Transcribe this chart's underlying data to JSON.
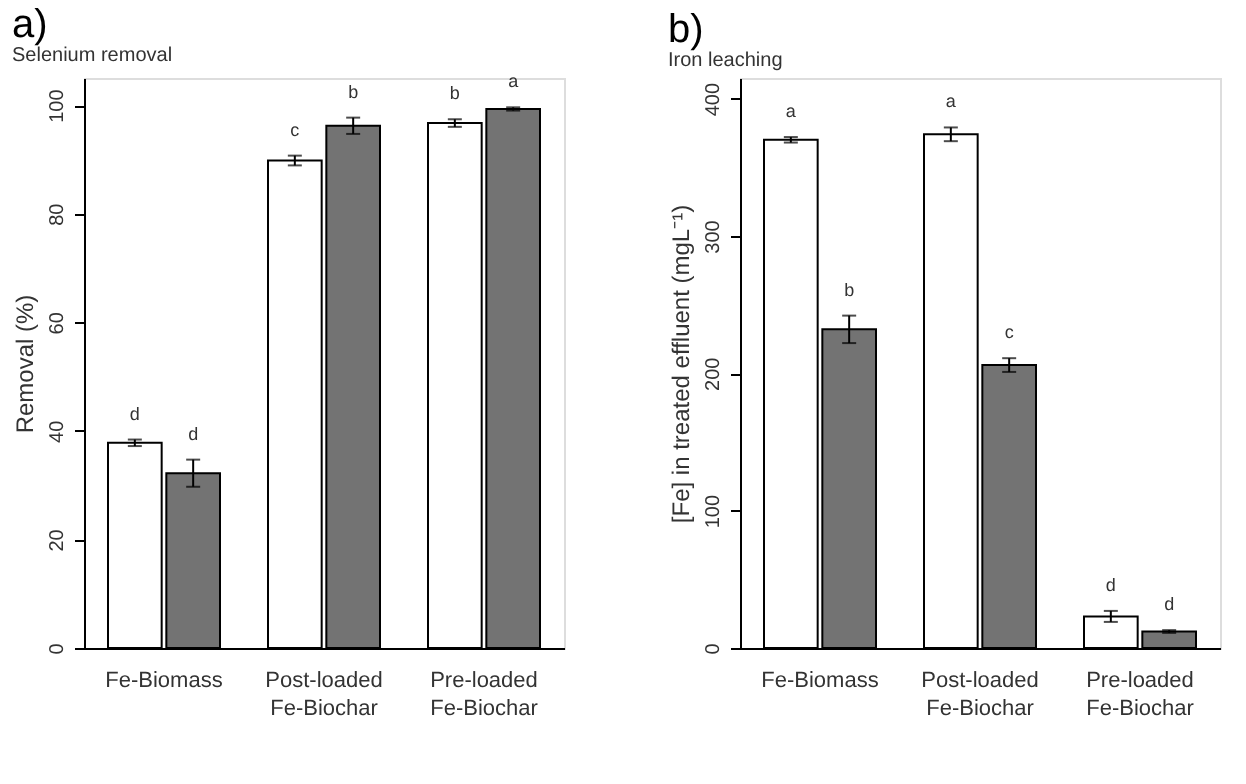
{
  "chart_data": [
    {
      "type": "bar",
      "title": "a)",
      "subtitle": "Selenium removal",
      "ylabel": "Removal (%)",
      "categories": [
        "Fe-Biomass",
        "Post-loaded Fe-Biochar",
        "Pre-loaded Fe-Biochar"
      ],
      "series": [
        {
          "color": "#ffffff",
          "values": [
            37.8,
            89.8,
            96.7
          ],
          "errors": [
            0.6,
            0.9,
            0.7
          ],
          "value_labels": [
            "d",
            "c",
            "b"
          ]
        },
        {
          "color": "#737373",
          "values": [
            32.2,
            96.2,
            99.3
          ],
          "errors": [
            2.5,
            1.5,
            0.3
          ],
          "value_labels": [
            "d",
            "b",
            "a"
          ]
        }
      ],
      "ylim": [
        0,
        105
      ],
      "yticks": [
        0,
        20,
        40,
        60,
        80,
        100
      ]
    },
    {
      "type": "bar",
      "title": "b)",
      "subtitle": "Iron leaching",
      "ylabel": "[Fe] in treated effluent  (mgL⁻¹)",
      "categories": [
        "Fe-Biomass",
        "Post-loaded Fe-Biochar",
        "Pre-loaded Fe-Biochar"
      ],
      "series": [
        {
          "color": "#ffffff",
          "values": [
            370,
            374,
            23
          ],
          "errors": [
            2,
            5,
            4
          ],
          "value_labels": [
            "a",
            "a",
            "d"
          ]
        },
        {
          "color": "#737373",
          "values": [
            232,
            206,
            12
          ],
          "errors": [
            10,
            5,
            1
          ],
          "value_labels": [
            "b",
            "c",
            "d"
          ]
        }
      ],
      "ylim": [
        0,
        415
      ],
      "yticks": [
        0,
        100,
        200,
        300,
        400
      ]
    }
  ]
}
